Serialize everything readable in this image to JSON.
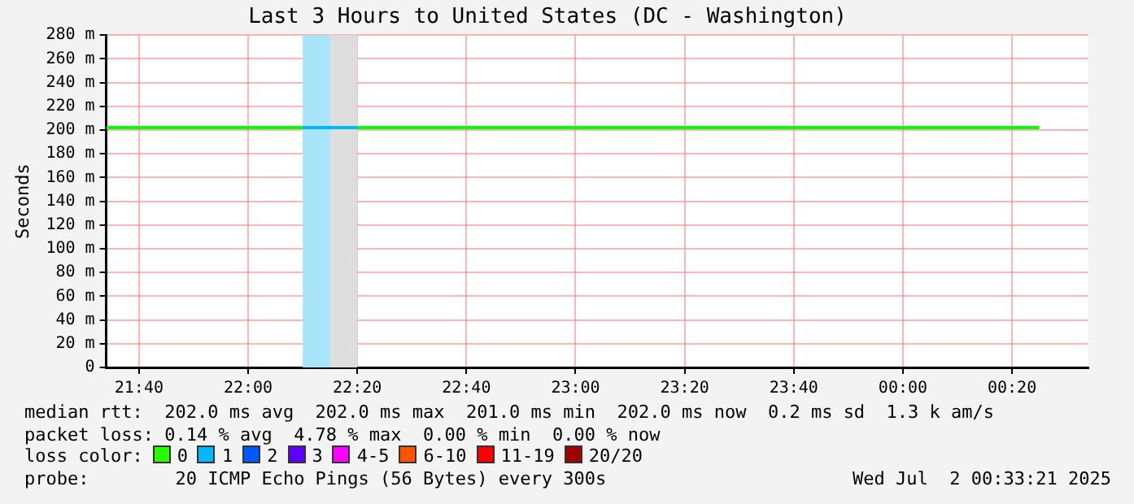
{
  "chart_data": {
    "type": "line",
    "title": "Last 3 Hours to United States (DC - Washington)",
    "ylabel": "Seconds",
    "xlim": [
      "2025-07-01T21:34",
      "2025-07-02T00:34"
    ],
    "xticks": [
      {
        "value": "2025-07-01T21:40",
        "label": "21:40"
      },
      {
        "value": "2025-07-01T22:00",
        "label": "22:00"
      },
      {
        "value": "2025-07-01T22:20",
        "label": "22:20"
      },
      {
        "value": "2025-07-01T22:40",
        "label": "22:40"
      },
      {
        "value": "2025-07-01T23:00",
        "label": "23:00"
      },
      {
        "value": "2025-07-01T23:20",
        "label": "23:20"
      },
      {
        "value": "2025-07-01T23:40",
        "label": "23:40"
      },
      {
        "value": "2025-07-02T00:00",
        "label": "00:00"
      },
      {
        "value": "2025-07-02T00:20",
        "label": "00:20"
      }
    ],
    "ylim": [
      0,
      280
    ],
    "yticks": [
      0,
      {
        "value": 20,
        "label": "20 m"
      },
      {
        "value": 40,
        "label": "40 m"
      },
      {
        "value": 60,
        "label": "60 m"
      },
      {
        "value": 80,
        "label": "80 m"
      },
      {
        "value": 100,
        "label": "100 m"
      },
      {
        "value": 120,
        "label": "120 m"
      },
      {
        "value": 140,
        "label": "140 m"
      },
      {
        "value": 160,
        "label": "160 m"
      },
      {
        "value": 180,
        "label": "180 m"
      },
      {
        "value": 200,
        "label": "200 m"
      },
      {
        "value": 220,
        "label": "220 m"
      },
      {
        "value": 240,
        "label": "240 m"
      },
      {
        "value": 260,
        "label": "260 m"
      },
      {
        "value": 280,
        "label": "280 m"
      }
    ],
    "series": [
      {
        "color": "#00ff00",
        "x": [
          "2025-07-01T21:34",
          "2025-07-01T22:10",
          "2025-07-01T22:12",
          "2025-07-01T22:20",
          "2025-07-02T00:25"
        ],
        "values": [
          202,
          202,
          null,
          202,
          202
        ]
      },
      {
        "color": "#00b8ff",
        "x": [
          "2025-07-01T22:10",
          "2025-07-01T22:20"
        ],
        "values": [
          202,
          202
        ]
      }
    ],
    "bands": [
      {
        "axis": "x",
        "from": "2025-07-01T22:10",
        "to": "2025-07-01T22:20",
        "color": "#a8e4fa"
      },
      {
        "axis": "x",
        "from": "2025-07-01T22:15",
        "to": "2025-07-01T22:20",
        "color": "#dddddd"
      }
    ],
    "grid": true,
    "marker": "none",
    "line_style": "solid",
    "legend": false,
    "annotations": [
      "median rtt:  202.0 ms avg  202.0 ms max  201.0 ms min  202.0 ms now  0.2 ms sd  1.3 k am/s",
      "packet loss: 0.14 % avg  4.78 % max  0.00 % min  0.00 % now",
      "loss color:",
      "0",
      "1",
      "2",
      "3",
      "4-5",
      "6-10",
      "11-19",
      "20/20",
      "probe:        20 ICMP Echo Pings (56 Bytes) every 300s",
      "Wed Jul  2 00:33:21 2025"
    ]
  }
}
